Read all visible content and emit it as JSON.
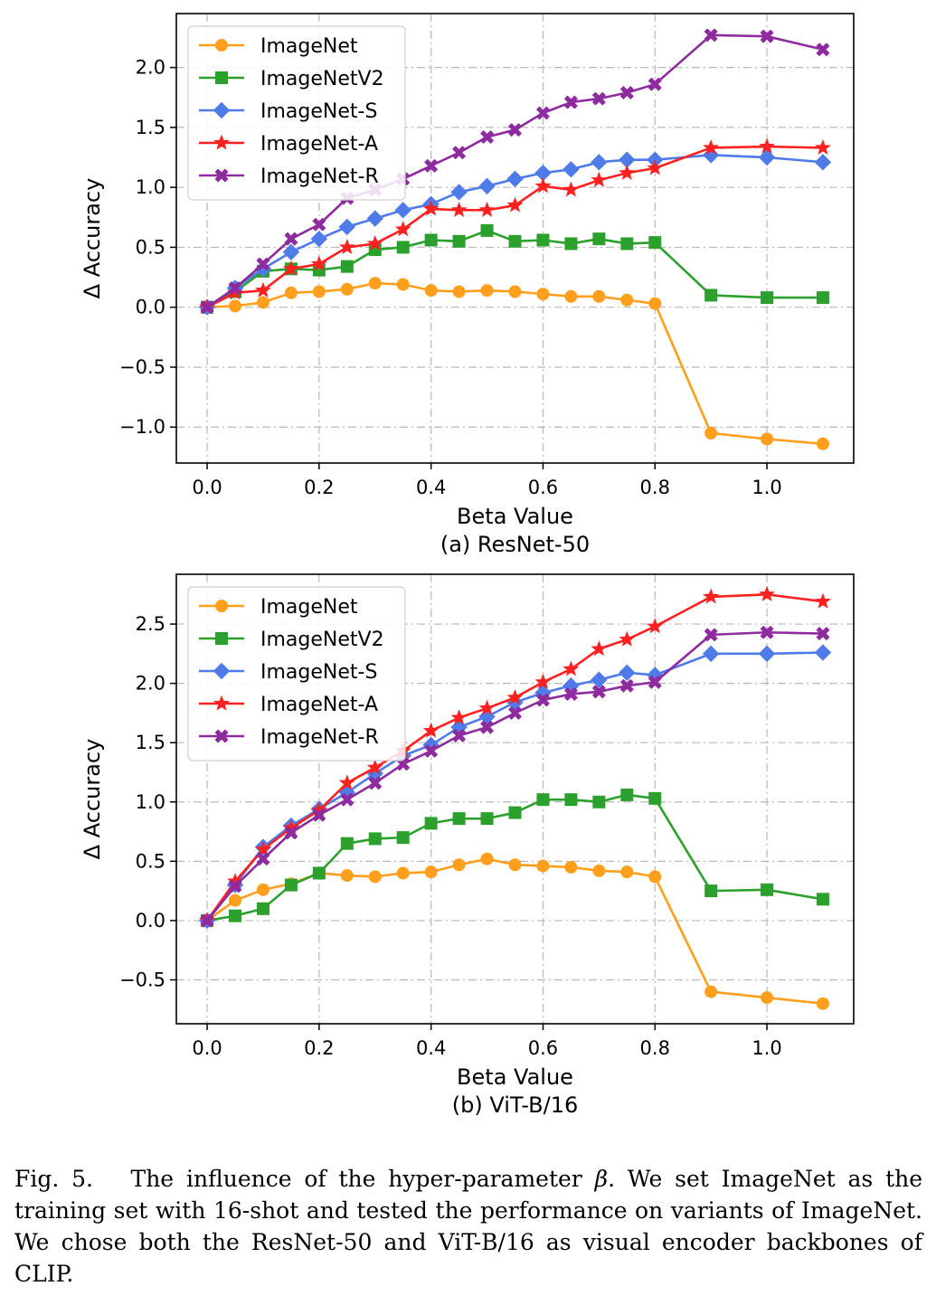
{
  "chart_data": [
    {
      "type": "line",
      "title": "(a) ResNet-50",
      "xlabel": "Beta Value",
      "ylabel": "Δ Accuracy",
      "xlim": [
        -0.055,
        1.155
      ],
      "ylim": [
        -1.3,
        2.45
      ],
      "xticks": [
        0.0,
        0.2,
        0.4,
        0.6,
        0.8,
        1.0
      ],
      "xtick_labels": [
        "0.0",
        "0.2",
        "0.4",
        "0.6",
        "0.8",
        "1.0"
      ],
      "yticks": [
        -1.0,
        -0.5,
        0.0,
        0.5,
        1.0,
        1.5,
        2.0
      ],
      "ytick_labels": [
        "−1.0",
        "−0.5",
        "0.0",
        "0.5",
        "1.0",
        "1.5",
        "2.0"
      ],
      "grid": true,
      "legend_position": "top-left",
      "x": [
        0.0,
        0.05,
        0.1,
        0.15,
        0.2,
        0.25,
        0.3,
        0.35,
        0.4,
        0.45,
        0.5,
        0.55,
        0.6,
        0.65,
        0.7,
        0.75,
        0.8,
        0.9,
        1.0,
        1.1
      ],
      "series": [
        {
          "name": "ImageNet",
          "color": "#ff9f1c",
          "marker": "circle",
          "values": [
            0.0,
            0.01,
            0.04,
            0.12,
            0.13,
            0.15,
            0.2,
            0.19,
            0.14,
            0.13,
            0.14,
            0.13,
            0.11,
            0.09,
            0.09,
            0.06,
            0.03,
            -1.05,
            -1.1,
            -1.14
          ]
        },
        {
          "name": "ImageNetV2",
          "color": "#2ca02c",
          "marker": "square",
          "values": [
            0.0,
            0.13,
            0.3,
            0.32,
            0.31,
            0.34,
            0.48,
            0.5,
            0.56,
            0.55,
            0.64,
            0.55,
            0.56,
            0.53,
            0.57,
            0.53,
            0.54,
            0.1,
            0.08,
            0.08
          ]
        },
        {
          "name": "ImageNet-S",
          "color": "#4f7be8",
          "marker": "diamond",
          "values": [
            0.0,
            0.16,
            0.32,
            0.46,
            0.57,
            0.67,
            0.74,
            0.81,
            0.86,
            0.96,
            1.01,
            1.07,
            1.12,
            1.15,
            1.21,
            1.23,
            1.23,
            1.27,
            1.25,
            1.21
          ]
        },
        {
          "name": "ImageNet-A",
          "color": "#ff2020",
          "marker": "star",
          "values": [
            0.0,
            0.12,
            0.14,
            0.32,
            0.36,
            0.5,
            0.53,
            0.65,
            0.82,
            0.81,
            0.81,
            0.85,
            1.01,
            0.98,
            1.06,
            1.12,
            1.16,
            1.33,
            1.34,
            1.33
          ]
        },
        {
          "name": "ImageNet-R",
          "color": "#8e2b9e",
          "marker": "x",
          "values": [
            0.0,
            0.16,
            0.36,
            0.57,
            0.69,
            0.91,
            0.98,
            1.07,
            1.18,
            1.29,
            1.42,
            1.48,
            1.62,
            1.71,
            1.74,
            1.79,
            1.86,
            2.27,
            2.26,
            2.15
          ]
        }
      ]
    },
    {
      "type": "line",
      "title": "(b) ViT-B/16",
      "xlabel": "Beta Value",
      "ylabel": "Δ Accuracy",
      "xlim": [
        -0.055,
        1.155
      ],
      "ylim": [
        -0.87,
        2.92
      ],
      "xticks": [
        0.0,
        0.2,
        0.4,
        0.6,
        0.8,
        1.0
      ],
      "xtick_labels": [
        "0.0",
        "0.2",
        "0.4",
        "0.6",
        "0.8",
        "1.0"
      ],
      "yticks": [
        -0.5,
        0.0,
        0.5,
        1.0,
        1.5,
        2.0,
        2.5
      ],
      "ytick_labels": [
        "−0.5",
        "0.0",
        "0.5",
        "1.0",
        "1.5",
        "2.0",
        "2.5"
      ],
      "grid": true,
      "legend_position": "top-left",
      "x": [
        0.0,
        0.05,
        0.1,
        0.15,
        0.2,
        0.25,
        0.3,
        0.35,
        0.4,
        0.45,
        0.5,
        0.55,
        0.6,
        0.65,
        0.7,
        0.75,
        0.8,
        0.9,
        1.0,
        1.1
      ],
      "series": [
        {
          "name": "ImageNet",
          "color": "#ff9f1c",
          "marker": "circle",
          "values": [
            0.0,
            0.17,
            0.26,
            0.31,
            0.4,
            0.38,
            0.37,
            0.4,
            0.41,
            0.47,
            0.52,
            0.47,
            0.46,
            0.45,
            0.42,
            0.41,
            0.37,
            -0.6,
            -0.65,
            -0.7
          ]
        },
        {
          "name": "ImageNetV2",
          "color": "#2ca02c",
          "marker": "square",
          "values": [
            0.0,
            0.04,
            0.1,
            0.3,
            0.4,
            0.65,
            0.69,
            0.7,
            0.82,
            0.86,
            0.86,
            0.91,
            1.02,
            1.02,
            1.0,
            1.06,
            1.03,
            0.25,
            0.26,
            0.18
          ]
        },
        {
          "name": "ImageNet-S",
          "color": "#4f7be8",
          "marker": "diamond",
          "values": [
            0.0,
            0.3,
            0.62,
            0.8,
            0.94,
            1.08,
            1.24,
            1.39,
            1.48,
            1.63,
            1.72,
            1.84,
            1.92,
            1.98,
            2.03,
            2.09,
            2.07,
            2.25,
            2.25,
            2.26
          ]
        },
        {
          "name": "ImageNet-A",
          "color": "#ff2020",
          "marker": "star",
          "values": [
            0.0,
            0.33,
            0.6,
            0.78,
            0.93,
            1.16,
            1.29,
            1.43,
            1.6,
            1.71,
            1.79,
            1.88,
            2.01,
            2.12,
            2.29,
            2.37,
            2.48,
            2.73,
            2.75,
            2.69
          ]
        },
        {
          "name": "ImageNet-R",
          "color": "#8e2b9e",
          "marker": "x",
          "values": [
            0.0,
            0.29,
            0.52,
            0.74,
            0.89,
            1.02,
            1.16,
            1.32,
            1.43,
            1.56,
            1.63,
            1.75,
            1.86,
            1.91,
            1.93,
            1.98,
            2.01,
            2.41,
            2.43,
            2.42
          ]
        }
      ]
    }
  ],
  "caption": {
    "prefix": "Fig. 5.",
    "text_before_symbol": "The influence of the hyper-parameter ",
    "symbol": "β",
    "text_after_symbol": ". We set ImageNet as the training set with 16-shot and tested the performance on variants of ImageNet. We chose both the ResNet-50 and ViT-B/16 as visual encoder backbones of CLIP."
  }
}
